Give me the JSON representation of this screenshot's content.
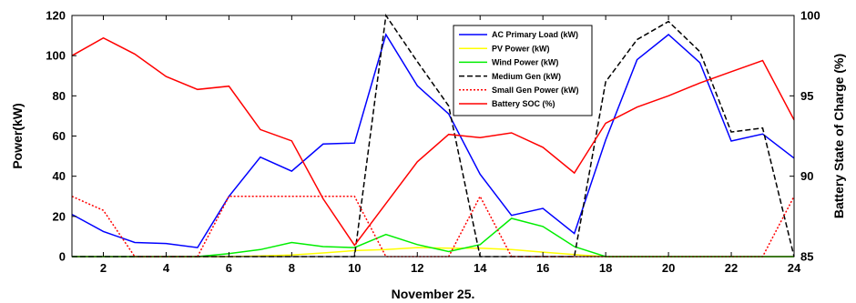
{
  "chart_data": {
    "type": "line",
    "xlabel": "November 25.",
    "ylabel": "Power(kW)",
    "y2label": "Battery State of Charge (%)",
    "xlim": [
      1,
      24
    ],
    "ylim": [
      0,
      120
    ],
    "y2lim": [
      85,
      100
    ],
    "x_ticks": [
      2,
      4,
      6,
      8,
      10,
      12,
      14,
      16,
      18,
      20,
      22,
      24
    ],
    "y_ticks": [
      0,
      20,
      40,
      60,
      80,
      100,
      120
    ],
    "y2_ticks": [
      85,
      90,
      95,
      100
    ],
    "grid": false,
    "legend_position": "top-center",
    "x": [
      1,
      2,
      3,
      4,
      5,
      6,
      7,
      8,
      9,
      10,
      11,
      12,
      13,
      14,
      15,
      16,
      17,
      18,
      19,
      20,
      21,
      22,
      23,
      24
    ],
    "series": [
      {
        "name": "AC Primary Load (kW)",
        "axis": "left",
        "color": "#0000ff",
        "dash": "solid",
        "values": [
          21,
          12.5,
          7,
          6.5,
          4.5,
          30,
          49.5,
          42.5,
          56,
          56.5,
          110.5,
          85,
          71,
          41,
          20.5,
          24,
          11.5,
          58,
          98,
          110.5,
          96.5,
          57.5,
          61,
          49
        ]
      },
      {
        "name": "PV Power (kW)",
        "axis": "left",
        "color": "#ffff00",
        "dash": "solid",
        "values": [
          0,
          0,
          0,
          0,
          0,
          0,
          0.3,
          0.8,
          1.8,
          3,
          3.5,
          4.5,
          4.2,
          4.2,
          3.5,
          2.2,
          1,
          0,
          0,
          0,
          0,
          0,
          0,
          0
        ]
      },
      {
        "name": "Wind Power (kW)",
        "axis": "left",
        "color": "#00ee00",
        "dash": "solid",
        "values": [
          0,
          0,
          0,
          0,
          0,
          1.5,
          3.5,
          7,
          5,
          4.5,
          11,
          6,
          2.5,
          6,
          19,
          15,
          5,
          0,
          0,
          0,
          0,
          0,
          0,
          0
        ]
      },
      {
        "name": "Medium Gen (kW)",
        "axis": "left",
        "color": "#000000",
        "dash": "dashed",
        "values": [
          0,
          0,
          0,
          0,
          0,
          0,
          0,
          0,
          0,
          0,
          120,
          97,
          75,
          0,
          0,
          0,
          0,
          87,
          108,
          117,
          102,
          62,
          64,
          0
        ]
      },
      {
        "name": "Small Gen Power (kW)",
        "axis": "left",
        "color": "#ff0000",
        "dash": "dotted",
        "values": [
          30,
          23,
          0,
          0,
          0,
          30,
          30,
          30,
          30,
          30,
          0,
          0,
          0,
          30,
          0,
          0,
          0,
          0,
          0,
          0,
          0,
          0,
          0,
          30
        ]
      },
      {
        "name": "Battery SOC (%)",
        "axis": "right",
        "color": "#ff0000",
        "dash": "solid",
        "values": [
          97.5,
          98.6,
          97.6,
          96.2,
          95.4,
          95.6,
          92.9,
          92.2,
          88.6,
          85.7,
          88.3,
          90.9,
          92.6,
          92.4,
          92.7,
          91.8,
          90.2,
          93.3,
          94.3,
          95,
          95.8,
          96.5,
          97.2,
          93.5
        ]
      }
    ]
  }
}
